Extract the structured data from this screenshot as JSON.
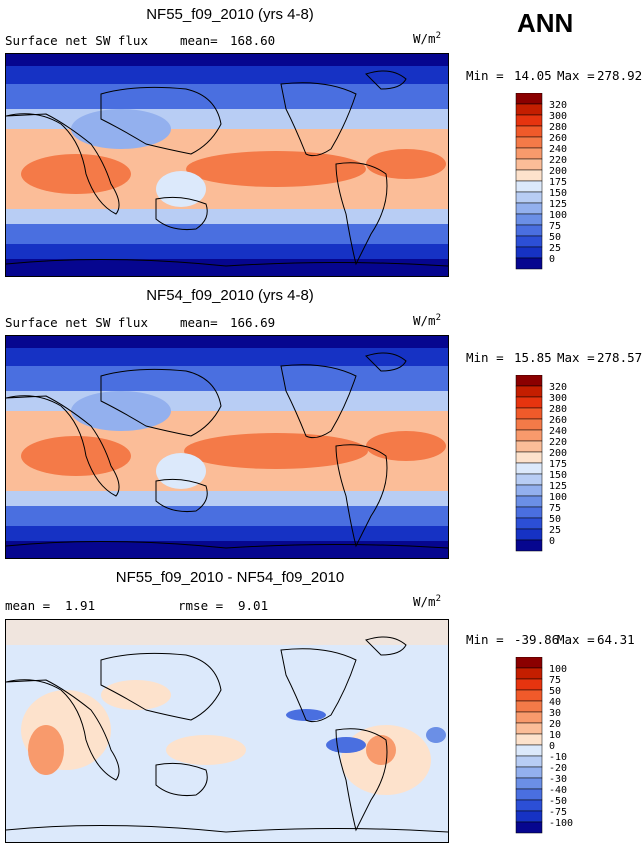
{
  "season": "ANN",
  "chart_data": [
    {
      "type": "heatmap",
      "title": "NF55_f09_2010 (yrs 4-8)",
      "variable": "Surface net SW flux",
      "stat_label": "mean=",
      "stat_value": "168.60",
      "units": "W/m",
      "units_sup": "2",
      "min_label": "Min =",
      "min": "14.05",
      "max_label": "Max =",
      "max": "278.92",
      "colorbar": {
        "levels": [
          "320",
          "300",
          "280",
          "260",
          "240",
          "220",
          "200",
          "175",
          "150",
          "125",
          "100",
          "75",
          "50",
          "25",
          "0"
        ],
        "colors": [
          "#8b0000",
          "#c41e00",
          "#e6340f",
          "#f05a2a",
          "#f47a48",
          "#f89a6c",
          "#fbbd98",
          "#fde2cc",
          "#dce9fb",
          "#b8cdf4",
          "#93b0ee",
          "#6b8fe6",
          "#4a6fe0",
          "#2c4fd6",
          "#1632c4",
          "#06068f"
        ]
      }
    },
    {
      "type": "heatmap",
      "title": "NF54_f09_2010 (yrs 4-8)",
      "variable": "Surface net SW flux",
      "stat_label": "mean=",
      "stat_value": "166.69",
      "units": "W/m",
      "units_sup": "2",
      "min_label": "Min =",
      "min": "15.85",
      "max_label": "Max =",
      "max": "278.57",
      "colorbar": {
        "levels": [
          "320",
          "300",
          "280",
          "260",
          "240",
          "220",
          "200",
          "175",
          "150",
          "125",
          "100",
          "75",
          "50",
          "25",
          "0"
        ],
        "colors": [
          "#8b0000",
          "#c41e00",
          "#e6340f",
          "#f05a2a",
          "#f47a48",
          "#f89a6c",
          "#fbbd98",
          "#fde2cc",
          "#dce9fb",
          "#b8cdf4",
          "#93b0ee",
          "#6b8fe6",
          "#4a6fe0",
          "#2c4fd6",
          "#1632c4",
          "#06068f"
        ]
      }
    },
    {
      "type": "heatmap",
      "title": "NF55_f09_2010 - NF54_f09_2010",
      "stat_label": "mean =",
      "stat_value": "1.91",
      "rmse_label": "rmse =",
      "rmse_value": "9.01",
      "units": "W/m",
      "units_sup": "2",
      "min_label": "Min =",
      "min": "-39.86",
      "max_label": "Max =",
      "max": "64.31",
      "colorbar": {
        "levels": [
          "100",
          "75",
          "50",
          "40",
          "30",
          "20",
          "10",
          "0",
          "-10",
          "-20",
          "-30",
          "-40",
          "-50",
          "-75",
          "-100"
        ],
        "colors": [
          "#8b0000",
          "#c41e00",
          "#e6340f",
          "#f05a2a",
          "#f47a48",
          "#f89a6c",
          "#fbbd98",
          "#fde2cc",
          "#dce9fb",
          "#b8cdf4",
          "#93b0ee",
          "#6b8fe6",
          "#4a6fe0",
          "#2c4fd6",
          "#1632c4",
          "#06068f"
        ]
      }
    }
  ]
}
